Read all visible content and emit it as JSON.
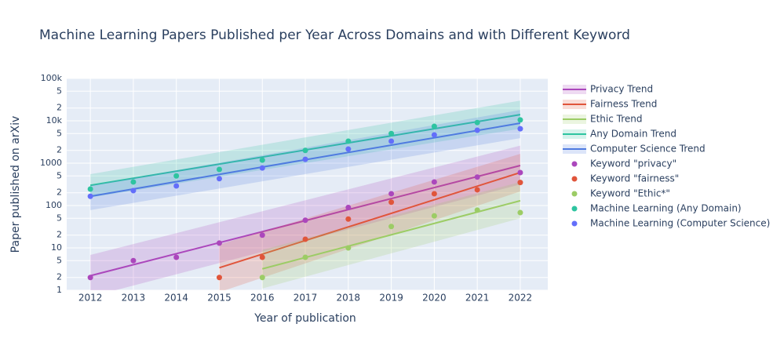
{
  "chart_data": {
    "type": "scatter",
    "title": "Machine Learning Papers Published per Year Across Domains and with Different Keyword",
    "x_label": "Year of publication",
    "y_label": "Paper published on arXiv",
    "log_y": true,
    "grid": true,
    "xlim": [
      2011.45,
      2022.64
    ],
    "ylim": [
      1,
      100000
    ],
    "xticks": [
      2012,
      2013,
      2014,
      2015,
      2016,
      2017,
      2018,
      2019,
      2020,
      2021,
      2022
    ],
    "yticks": [
      1,
      2,
      5,
      10,
      {
        "value": 20,
        "label": "2"
      },
      {
        "value": 50,
        "label": "5"
      },
      100,
      {
        "value": 200,
        "label": "2"
      },
      {
        "value": 500,
        "label": "5"
      },
      1000,
      {
        "value": 2000,
        "label": "2"
      },
      {
        "value": 5000,
        "label": "5"
      },
      {
        "value": 10000,
        "label": "10k"
      },
      {
        "value": 20000,
        "label": "2"
      },
      {
        "value": 50000,
        "label": "5"
      },
      {
        "value": 100000,
        "label": "100k"
      }
    ],
    "series": [
      {
        "name": "Privacy Trend",
        "mode": "line",
        "color": "#ab47bc",
        "x": [
          2012,
          2022
        ],
        "values": [
          2.2,
          880
        ],
        "lower": [
          0.7,
          315
        ],
        "upper": [
          6.8,
          2600
        ]
      },
      {
        "name": "Fairness Trend",
        "mode": "line",
        "color": "#e0553b",
        "x": [
          2015,
          2022
        ],
        "values": [
          3.4,
          600
        ],
        "lower": [
          0.9,
          215
        ],
        "upper": [
          12,
          1660
        ]
      },
      {
        "name": "Ethic Trend",
        "mode": "line",
        "color": "#9ccc65",
        "x": [
          2016,
          2022
        ],
        "values": [
          3.2,
          130
        ],
        "lower": [
          1.1,
          50
        ],
        "upper": [
          9,
          360
        ]
      },
      {
        "name": "Any Domain Trend",
        "mode": "line",
        "color": "#2ec4a0",
        "x": [
          2012,
          2022
        ],
        "values": [
          300,
          14000
        ],
        "lower": [
          155,
          6500
        ],
        "upper": [
          550,
          30000
        ]
      },
      {
        "name": "Computer Science Trend",
        "mode": "line",
        "color": "#4f7be0",
        "x": [
          2012,
          2022
        ],
        "values": [
          165,
          8800
        ],
        "lower": [
          78,
          3900
        ],
        "upper": [
          300,
          18000
        ]
      },
      {
        "name": "Keyword \"privacy\"",
        "mode": "markers",
        "color": "#ab47bc",
        "x": [
          2012,
          2013,
          2014,
          2015,
          2016,
          2017,
          2018,
          2019,
          2020,
          2021,
          2022
        ],
        "values": [
          2,
          5,
          6,
          13,
          20,
          45,
          90,
          190,
          360,
          470,
          600
        ]
      },
      {
        "name": "Keyword \"fairness\"",
        "mode": "markers",
        "color": "#e0553b",
        "x": [
          2015,
          2016,
          2017,
          2018,
          2019,
          2020,
          2021,
          2022
        ],
        "values": [
          2,
          6,
          16,
          48,
          120,
          190,
          235,
          350
        ]
      },
      {
        "name": "Keyword \"Ethic*\"",
        "mode": "markers",
        "color": "#9ccc65",
        "x": [
          2016,
          2017,
          2018,
          2019,
          2020,
          2021,
          2022
        ],
        "values": [
          2,
          6,
          10,
          32,
          57,
          78,
          68
        ]
      },
      {
        "name": "Machine Learning (Any Domain)",
        "mode": "markers",
        "color": "#2ec4a0",
        "x": [
          2012,
          2013,
          2014,
          2015,
          2016,
          2017,
          2018,
          2019,
          2020,
          2021,
          2022
        ],
        "values": [
          245,
          360,
          500,
          710,
          1180,
          2000,
          3300,
          5000,
          7400,
          9100,
          10500
        ]
      },
      {
        "name": "Machine Learning (Computer Science)",
        "mode": "markers",
        "color": "#636efa",
        "x": [
          2012,
          2013,
          2014,
          2015,
          2016,
          2017,
          2018,
          2019,
          2020,
          2021,
          2022
        ],
        "values": [
          165,
          225,
          290,
          430,
          770,
          1230,
          2150,
          3300,
          4650,
          6000,
          6500
        ]
      }
    ]
  }
}
